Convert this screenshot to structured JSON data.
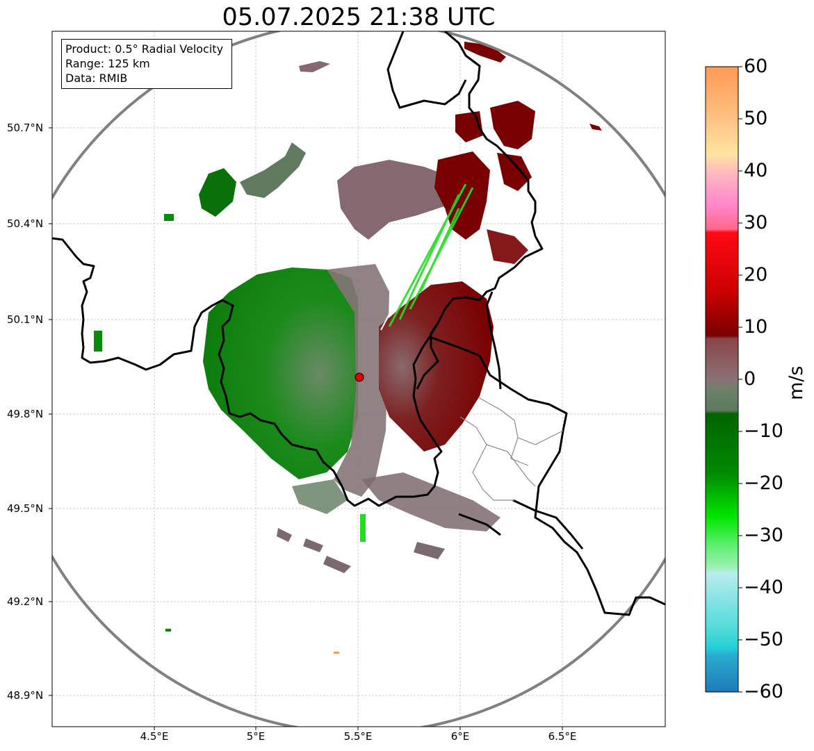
{
  "title": "05.07.2025 21:38 UTC",
  "info": {
    "product": "Product: 0.5° Radial Velocity",
    "range": "Range: 125 km",
    "data": "Data: RMIB"
  },
  "lat_labels": [
    "50.7°N",
    "50.4°N",
    "50.1°N",
    "49.8°N",
    "49.5°N",
    "49.2°N",
    "48.9°N"
  ],
  "lon_labels": [
    "4.5°E",
    "5°E",
    "5.5°E",
    "6°E",
    "6.5°E"
  ],
  "colorbar": {
    "unit": "m/s",
    "ticks": [
      "60",
      "50",
      "40",
      "30",
      "20",
      "10",
      "0",
      "−10",
      "−20",
      "−30",
      "−40",
      "−50",
      "−60"
    ]
  },
  "colors": {
    "outbound_dark": "#7a0000",
    "outbound_mid": "#8a5a60",
    "zero": "#7f7f7f",
    "inbound_grey": "#5f7f5f",
    "inbound_green": "#0a7a0a",
    "border": "#000000",
    "range_ring": "#808080",
    "radar_site": "#e00000"
  }
}
